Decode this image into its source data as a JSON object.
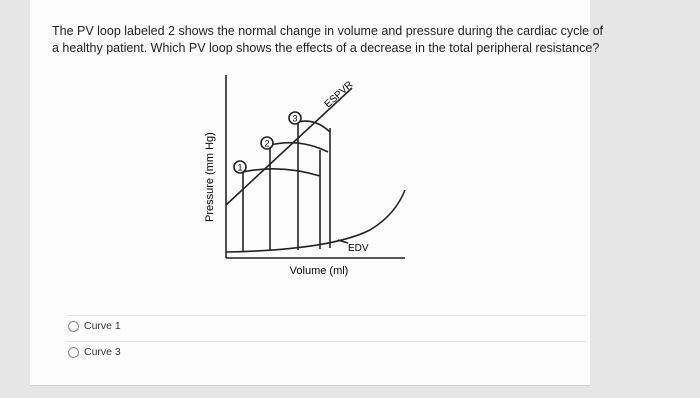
{
  "question": {
    "lines": [
      "The PV loop labeled 2 shows the normal change in volume and pressure during the cardiac cycle of",
      "a healthy patient.  Which PV loop shows the effects of a decrease in the total peripheral resistance?"
    ]
  },
  "diagram": {
    "y_axis_label": "Pressure (mm Hg)",
    "x_axis_label": "Volume (ml)",
    "line_label": "ESPVR",
    "point_label": "EDV",
    "loops": [
      "1",
      "2",
      "3"
    ]
  },
  "options": [
    "Curve 1",
    "Curve 3"
  ]
}
